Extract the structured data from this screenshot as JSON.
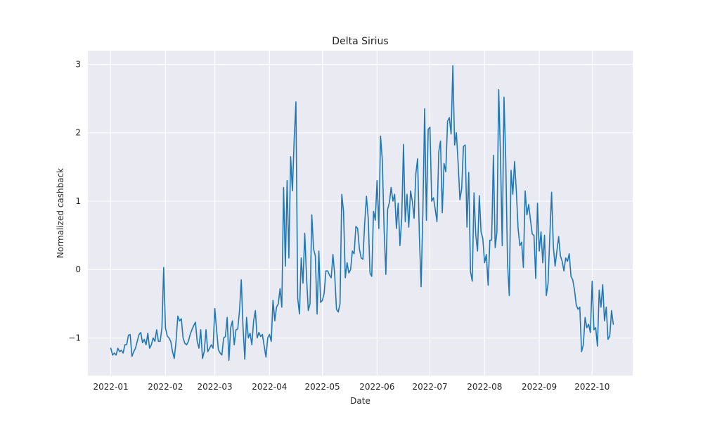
{
  "chart_data": {
    "type": "line",
    "title": "Delta Sirius",
    "xlabel": "Date",
    "ylabel": "Normalized cashback",
    "x_start": "2022-01-01",
    "x_end": "2022-10-11",
    "xlim": [
      "2021-12-19",
      "2022-10-24"
    ],
    "ylim": [
      -1.55,
      3.2
    ],
    "x_ticks": [
      "2022-01",
      "2022-02",
      "2022-03",
      "2022-04",
      "2022-05",
      "2022-06",
      "2022-07",
      "2022-08",
      "2022-09",
      "2022-10"
    ],
    "x_tick_dates": [
      "2022-01-01",
      "2022-02-01",
      "2022-03-01",
      "2022-04-01",
      "2022-05-01",
      "2022-06-01",
      "2022-07-01",
      "2022-08-01",
      "2022-09-01",
      "2022-10-01"
    ],
    "y_ticks": [
      -1,
      0,
      1,
      2,
      3
    ],
    "y_tick_labels": [
      "−1",
      "0",
      "1",
      "2",
      "3"
    ],
    "grid": true,
    "background": "#eaeaf2",
    "line_color": "#1f77b4",
    "series": [
      {
        "values": [
          -1.15,
          -1.25,
          -1.22,
          -1.25,
          -1.15,
          -1.2,
          -1.18,
          -1.22,
          -1.1,
          -1.1,
          -0.96,
          -0.95,
          -1.27,
          -1.2,
          -1.15,
          -1.05,
          -0.95,
          -0.92,
          -1.07,
          -1.02,
          -1.1,
          -0.93,
          -1.15,
          -1.1,
          -1.0,
          -1.05,
          -0.88,
          -1.05,
          -1.05,
          -0.85,
          0.03,
          -0.85,
          -0.97,
          -1.0,
          -1.05,
          -1.2,
          -1.3,
          -1.05,
          -0.68,
          -0.75,
          -0.72,
          -1.0,
          -1.08,
          -1.1,
          -1.05,
          -0.95,
          -0.88,
          -0.82,
          -0.77,
          -1.05,
          -1.15,
          -0.88,
          -1.3,
          -1.2,
          -0.88,
          -1.2,
          -1.15,
          -1.1,
          -1.15,
          -0.57,
          -0.88,
          -1.17,
          -1.22,
          -1.25,
          -1.0,
          -0.98,
          -0.7,
          -1.33,
          -0.85,
          -0.75,
          -1.1,
          -0.88,
          -0.87,
          -0.6,
          -0.15,
          -0.85,
          -1.31,
          -0.7,
          -1.0,
          -0.93,
          -1.1,
          -0.75,
          -0.6,
          -1.0,
          -0.92,
          -0.98,
          -0.95,
          -1.12,
          -1.28,
          -1.0,
          -0.95,
          -1.05,
          -0.45,
          -0.75,
          -0.55,
          -0.5,
          -0.28,
          -0.55,
          1.2,
          0.05,
          1.3,
          0.17,
          1.65,
          1.15,
          1.9,
          2.45,
          -0.42,
          -0.65,
          0.17,
          -0.2,
          0.53,
          -0.1,
          -0.6,
          -0.5,
          0.8,
          0.3,
          0.2,
          -0.65,
          0.27,
          -0.48,
          -0.45,
          -0.35,
          -0.02,
          -0.02,
          -0.08,
          -0.12,
          0.22,
          -0.08,
          -0.58,
          -0.62,
          -0.5,
          1.1,
          0.85,
          -0.12,
          0.1,
          -0.05,
          0.0,
          0.27,
          0.23,
          0.63,
          0.6,
          0.3,
          0.17,
          0.15,
          0.68,
          1.07,
          0.75,
          -0.05,
          -0.1,
          0.85,
          0.72,
          1.3,
          0.6,
          1.95,
          1.6,
          0.6,
          -0.07,
          0.88,
          0.98,
          1.2,
          1.0,
          1.1,
          0.6,
          0.97,
          0.35,
          0.75,
          1.83,
          0.7,
          1.1,
          0.62,
          1.15,
          1.0,
          0.75,
          1.4,
          1.62,
          0.5,
          -0.25,
          0.85,
          2.35,
          0.72,
          2.05,
          2.08,
          1.0,
          1.05,
          0.88,
          0.7,
          1.72,
          1.88,
          0.83,
          1.55,
          1.43,
          2.17,
          2.22,
          1.98,
          2.98,
          1.82,
          2.0,
          1.55,
          1.02,
          1.18,
          1.8,
          1.82,
          0.62,
          1.42,
          -0.03,
          -0.17,
          1.12,
          0.5,
          0.27,
          1.08,
          0.55,
          0.45,
          0.1,
          0.22,
          -0.23,
          0.43,
          0.43,
          1.67,
          0.32,
          0.55,
          2.63,
          1.67,
          0.35,
          2.52,
          1.6,
          0.1,
          -0.38,
          1.45,
          1.1,
          1.58,
          1.15,
          0.6,
          0.35,
          0.4,
          0.03,
          1.15,
          0.8,
          0.95,
          0.73,
          0.52,
          0.5,
          -0.13,
          0.97,
          0.27,
          0.55,
          0.1,
          0.5,
          -0.38,
          -0.2,
          0.5,
          1.13,
          0.33,
          0.05,
          0.27,
          0.48,
          0.2,
          0.12,
          -0.02,
          0.17,
          0.12,
          0.23,
          -0.1,
          -0.15,
          -0.3,
          -0.52,
          -0.58,
          -0.55,
          -1.2,
          -1.1,
          -0.7,
          -0.85,
          -0.8,
          -0.92,
          -0.17,
          -0.88,
          -0.85,
          -1.12,
          -0.3,
          -0.55,
          -0.22,
          -0.75,
          -0.55,
          -1.02,
          -0.97,
          -0.6,
          -0.8
        ]
      }
    ]
  }
}
